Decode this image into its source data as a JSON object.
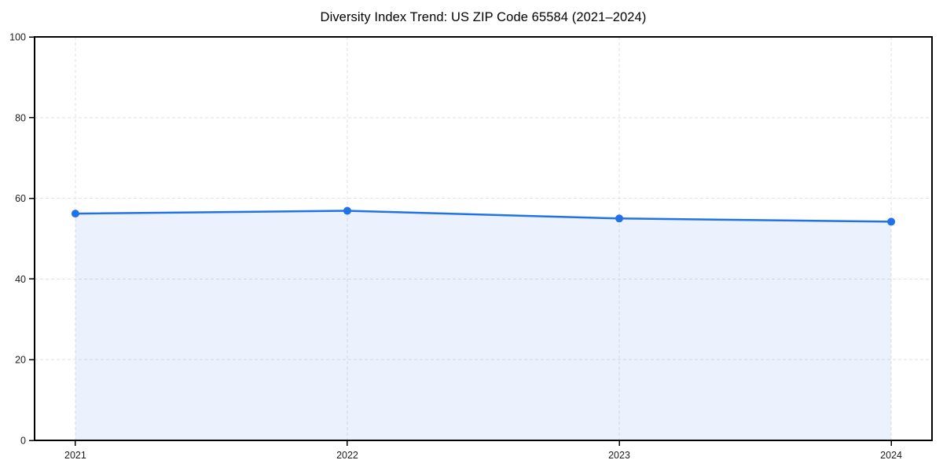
{
  "figure": {
    "background": "#ffffff"
  },
  "chart_data": {
    "type": "line",
    "title": "Diversity Index Trend: US ZIP Code 65584 (2021–2024)",
    "x": [
      2021,
      2022,
      2023,
      2024
    ],
    "xtick_labels": [
      "2021",
      "2022",
      "2023",
      "2024"
    ],
    "series": [
      {
        "name": "Diversity Index",
        "values": [
          56.2,
          56.9,
          55.0,
          54.2
        ],
        "color": "#2172e8",
        "marker": "circle",
        "area_fill": "rgba(33, 114, 232, 0.09)"
      }
    ],
    "xlabel": "",
    "ylabel": "",
    "ylim": [
      0,
      100
    ],
    "yticks": [
      0,
      20,
      40,
      60,
      80,
      100
    ],
    "grid": true,
    "grid_style": "dashed",
    "grid_color": "#e2e2e2",
    "axis_color": "#000000",
    "tick_label_color": "#1a1a1a",
    "legend": "none",
    "x_margin_frac": 0.05
  }
}
